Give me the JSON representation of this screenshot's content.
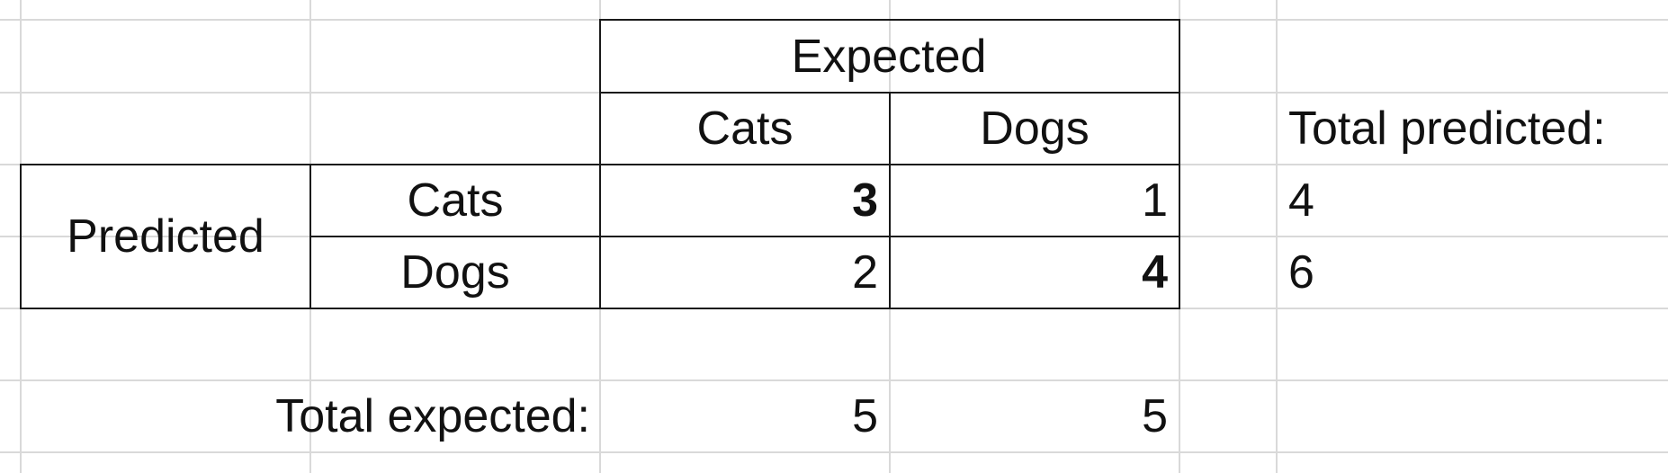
{
  "matrix": {
    "expected_header": "Expected",
    "expected_cols": [
      "Cats",
      "Dogs"
    ],
    "predicted_label": "Predicted",
    "rows": [
      {
        "label": "Cats",
        "values": [
          "3",
          "1"
        ]
      },
      {
        "label": "Dogs",
        "values": [
          "2",
          "4"
        ]
      }
    ],
    "diagonal_bold": true
  },
  "predicted_totals": {
    "label": "Total predicted:",
    "values": [
      "4",
      "6"
    ]
  },
  "expected_totals": {
    "label": "Total expected:",
    "values": [
      "5",
      "5"
    ]
  },
  "colors": {
    "gridline": "#d9d9d9",
    "border": "#1a1a1a",
    "text": "#111111"
  }
}
